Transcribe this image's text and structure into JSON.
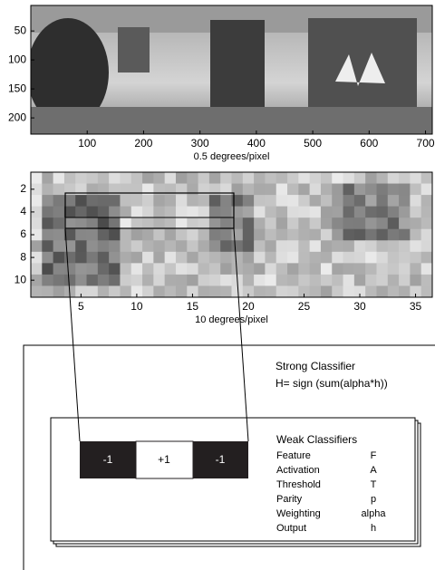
{
  "panorama": {
    "x_label": "0.5 degrees/pixel",
    "xlim": [
      0,
      712
    ],
    "xticks": [
      100,
      200,
      300,
      400,
      500,
      600,
      700
    ],
    "ylim": [
      6,
      228
    ],
    "yticks": [
      50,
      100,
      150,
      200
    ]
  },
  "grid_image": {
    "x_label": "10 degrees/pixel",
    "xlim": [
      0.5,
      36.5
    ],
    "xticks": [
      5,
      10,
      15,
      20,
      25,
      30,
      35
    ],
    "ylim": [
      0.5,
      11.5
    ],
    "yticks": [
      2,
      4,
      6,
      8,
      10
    ]
  },
  "strong_classifier": {
    "title": "Strong Classifier",
    "formula": "H= sign (sum(alpha*h))"
  },
  "feature": {
    "cells": [
      "-1",
      "+1",
      "-1"
    ]
  },
  "weak_classifiers": {
    "title": "Weak Classifiers",
    "rows": [
      [
        "Feature",
        "F"
      ],
      [
        "Activation",
        "A"
      ],
      [
        "Threshold",
        "T"
      ],
      [
        "Parity",
        "p"
      ],
      [
        "Weighting",
        "alpha"
      ],
      [
        "Output",
        "h"
      ]
    ]
  }
}
